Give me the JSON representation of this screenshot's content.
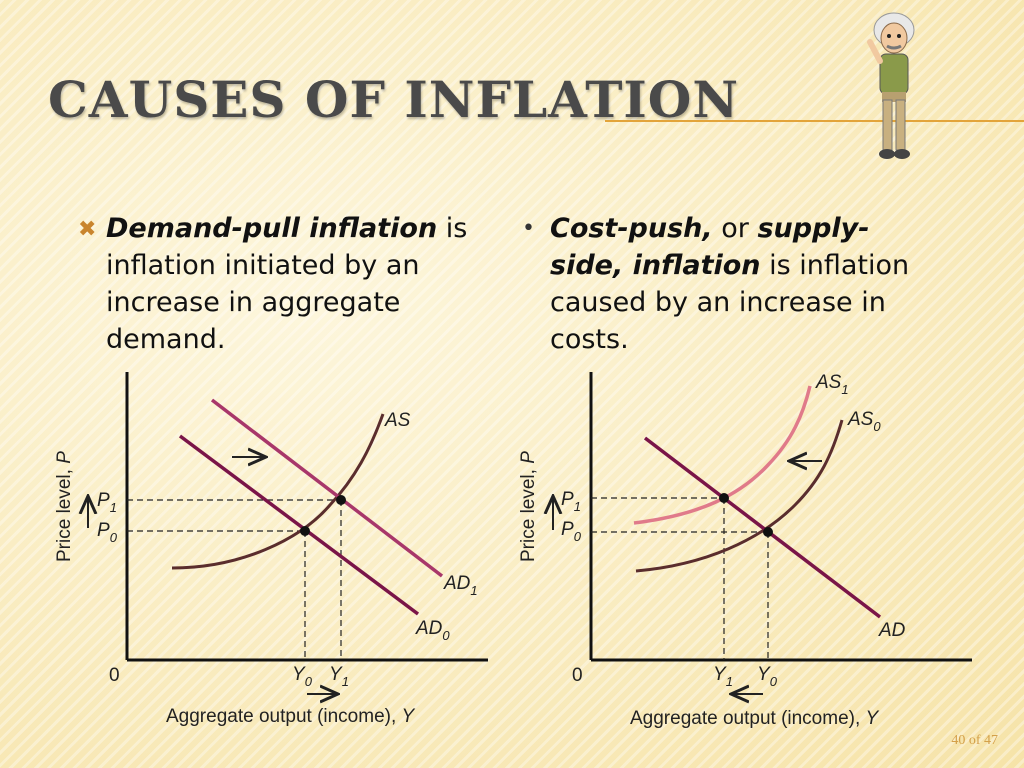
{
  "slide": {
    "title": "CAUSES OF INFLATION",
    "page": "40 of 47"
  },
  "bullets": {
    "left": {
      "term": "Demand-pull inflation",
      "rest_1": " is inflation initiated by an increase in aggregate demand."
    },
    "right": {
      "term_1": "Cost-push,",
      "mid": " or ",
      "term_2": "supply-side, inflation",
      "rest_1": " is inflation caused by an increase in costs."
    }
  },
  "graph_left": {
    "y_axis_label": "Price level, ",
    "y_axis_var": "P",
    "x_axis_label": "Aggregate output (income), ",
    "x_axis_var": "Y",
    "origin": "0",
    "as_label": "AS",
    "ad0_label": "AD",
    "ad0_sub": "0",
    "ad1_label": "AD",
    "ad1_sub": "1",
    "p0_label": "P",
    "p0_sub": "0",
    "p1_label": "P",
    "p1_sub": "1",
    "y0_label": "Y",
    "y0_sub": "0",
    "y1_label": "Y",
    "y1_sub": "1"
  },
  "graph_right": {
    "y_axis_label": "Price level, ",
    "y_axis_var": "P",
    "x_axis_label": "Aggregate output (income), ",
    "x_axis_var": "Y",
    "origin": "0",
    "as0_label": "AS",
    "as0_sub": "0",
    "as1_label": "AS",
    "as1_sub": "1",
    "ad_label": "AD",
    "p0_label": "P",
    "p0_sub": "0",
    "p1_label": "P",
    "p1_sub": "1",
    "y0_label": "Y",
    "y0_sub": "0",
    "y1_label": "Y",
    "y1_sub": "1"
  },
  "colors": {
    "ad0": "#7a1548",
    "ad1": "#a8376a",
    "as": "#5a2d2d",
    "as1": "#e07a8a",
    "accent": "#e3a43a"
  },
  "mascot_icon": "einstein-cartoon-icon"
}
